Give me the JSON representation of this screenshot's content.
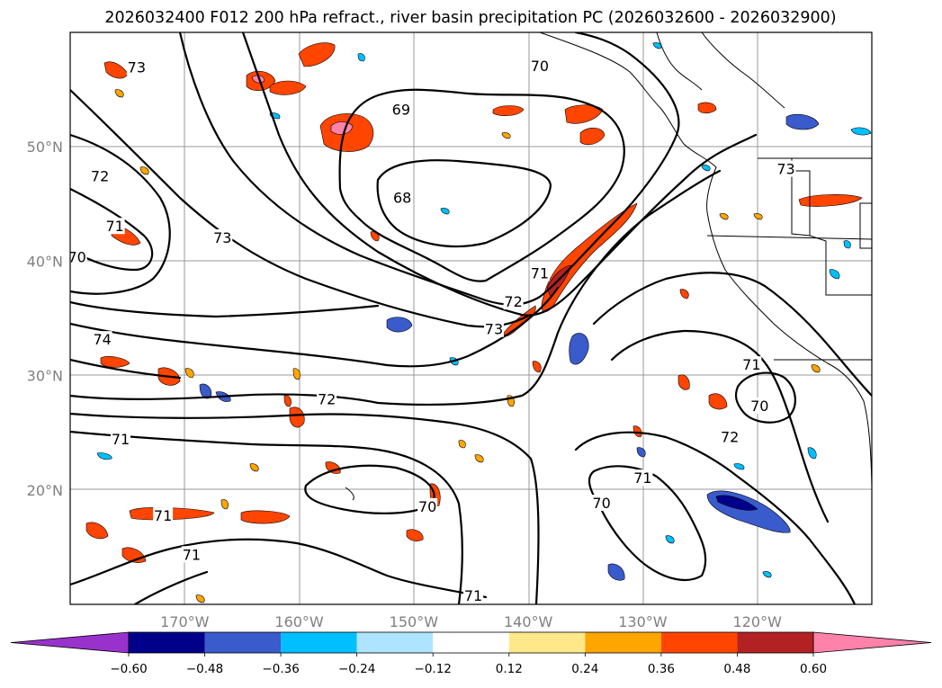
{
  "map": {
    "title": "2026032400 F012 200 hPa refract., river basin precipitation PC (2026032600 - 2026032900)",
    "lon_labels": [
      "170°W",
      "160°W",
      "150°W",
      "140°W",
      "130°W",
      "120°W"
    ],
    "lat_labels": [
      "50°N",
      "40°N",
      "30°N",
      "20°N"
    ],
    "lon_values": [
      -170,
      -160,
      -150,
      -140,
      -130,
      -120
    ],
    "lat_values": [
      50,
      40,
      30,
      20
    ],
    "extent": {
      "lon_min": -180,
      "lon_max": -110,
      "lat_min": 10,
      "lat_max": 60
    },
    "contour_labels": [
      {
        "text": "73",
        "lon": -174.2,
        "lat": 56.9
      },
      {
        "text": "70",
        "lon": -139.0,
        "lat": 57.0
      },
      {
        "text": "69",
        "lon": -151.1,
        "lat": 53.2
      },
      {
        "text": "68",
        "lon": -151.0,
        "lat": 45.5
      },
      {
        "text": "73",
        "lon": -117.5,
        "lat": 48.0
      },
      {
        "text": "72",
        "lon": -177.4,
        "lat": 47.4
      },
      {
        "text": "71",
        "lon": -176.1,
        "lat": 43.0
      },
      {
        "text": "73",
        "lon": -166.7,
        "lat": 42.0
      },
      {
        "text": "70",
        "lon": -179.4,
        "lat": 40.3
      },
      {
        "text": "71",
        "lon": -139.0,
        "lat": 38.9
      },
      {
        "text": "72",
        "lon": -141.3,
        "lat": 36.4
      },
      {
        "text": "73",
        "lon": -143.0,
        "lat": 34.0
      },
      {
        "text": "74",
        "lon": -177.2,
        "lat": 33.1
      },
      {
        "text": "71",
        "lon": -120.5,
        "lat": 30.9
      },
      {
        "text": "70",
        "lon": -119.8,
        "lat": 27.3
      },
      {
        "text": "72",
        "lon": -157.6,
        "lat": 27.9
      },
      {
        "text": "72",
        "lon": -122.4,
        "lat": 24.6
      },
      {
        "text": "71",
        "lon": -175.6,
        "lat": 24.4
      },
      {
        "text": "71",
        "lon": -130.0,
        "lat": 21.0
      },
      {
        "text": "70",
        "lon": -148.8,
        "lat": 18.5
      },
      {
        "text": "70",
        "lon": -133.6,
        "lat": 18.8
      },
      {
        "text": "71",
        "lon": -171.9,
        "lat": 17.7
      },
      {
        "text": "71",
        "lon": -169.4,
        "lat": 14.3
      },
      {
        "text": "71",
        "lon": -144.8,
        "lat": 10.7
      }
    ]
  },
  "colorbar": {
    "ticks": [
      "−0.60",
      "−0.48",
      "−0.36",
      "−0.24",
      "−0.12",
      "0.12",
      "0.24",
      "0.36",
      "0.48",
      "0.60"
    ],
    "colors": [
      "#9932cc",
      "#00008b",
      "#3a5bcc",
      "#00bfff",
      "#aee4ff",
      "#ffffff",
      "#ffe88a",
      "#ffa500",
      "#ff4500",
      "#b22222",
      "#ff82ab"
    ]
  }
}
